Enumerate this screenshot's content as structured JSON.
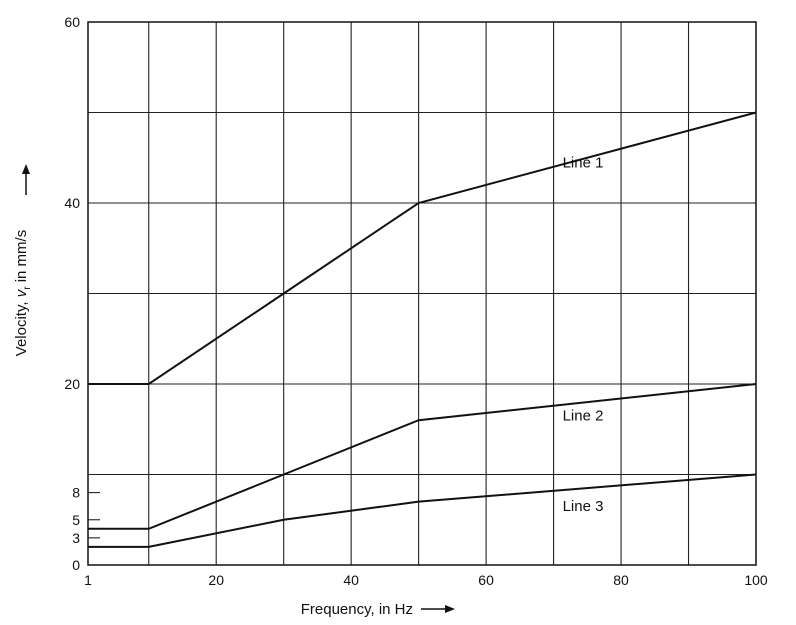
{
  "chart_data": {
    "type": "line",
    "title": "",
    "xlabel": "Frequency, in Hz",
    "ylabel_parts": [
      "Velocity, ",
      "v",
      "r",
      " in mm/s"
    ],
    "xlim": [
      1,
      100
    ],
    "ylim": [
      0,
      60
    ],
    "x_ticks": [
      1,
      20,
      40,
      60,
      80,
      100
    ],
    "y_ticks": [
      0,
      3,
      5,
      8,
      20,
      40,
      60
    ],
    "x_gridlines": [
      10,
      20,
      30,
      40,
      50,
      60,
      70,
      80,
      90
    ],
    "y_gridlines": [
      10,
      20,
      30,
      40,
      50
    ],
    "grid": true,
    "series": [
      {
        "name": "Line 1",
        "x": [
          1,
          10,
          30,
          50,
          100
        ],
        "y": [
          20,
          20,
          30,
          40,
          50
        ],
        "label_at": [
          70,
          44.5
        ]
      },
      {
        "name": "Line 2",
        "x": [
          1,
          10,
          30,
          50,
          100
        ],
        "y": [
          4,
          4,
          10,
          16,
          20
        ],
        "label_at": [
          70,
          16.5
        ]
      },
      {
        "name": "Line 3",
        "x": [
          1,
          10,
          30,
          50,
          100
        ],
        "y": [
          2,
          2,
          5,
          7,
          10
        ],
        "label_at": [
          70,
          6.5
        ]
      }
    ]
  }
}
